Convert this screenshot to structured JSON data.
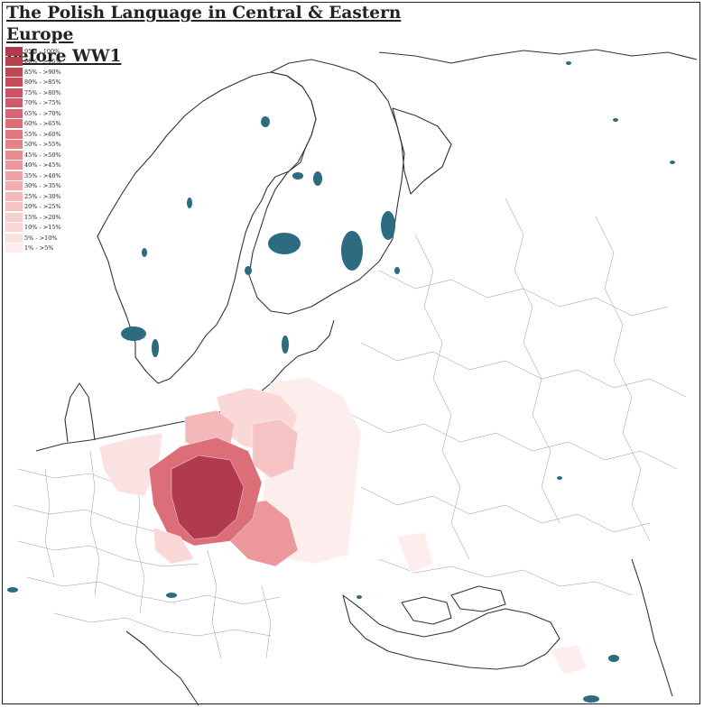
{
  "title": "The Polish Language in Central & Eastern Europe before WW1",
  "title_lines": [
    "The Polish Language in Central & Eastern Europe",
    "before WW1"
  ],
  "legend": [
    {
      "label": "95% - 100%",
      "color": "#b23a4e"
    },
    {
      "label": "90% - >95%",
      "color": "#b8404f"
    },
    {
      "label": "85% - >90%",
      "color": "#bf4656"
    },
    {
      "label": "80% - >85%",
      "color": "#c54c5c"
    },
    {
      "label": "75% - >80%",
      "color": "#cb5362"
    },
    {
      "label": "70% - >75%",
      "color": "#d15b69"
    },
    {
      "label": "65% - >70%",
      "color": "#d76470"
    },
    {
      "label": "60% - >65%",
      "color": "#dc6e78"
    },
    {
      "label": "55% - >60%",
      "color": "#e07880"
    },
    {
      "label": "50% - >55%",
      "color": "#e48288"
    },
    {
      "label": "45% - >50%",
      "color": "#e88c91"
    },
    {
      "label": "40% - >45%",
      "color": "#ec979b"
    },
    {
      "label": "35% - >40%",
      "color": "#efa2a5"
    },
    {
      "label": "30% - >35%",
      "color": "#f2adaf"
    },
    {
      "label": "25% - >30%",
      "color": "#f4b8ba"
    },
    {
      "label": "20% - >25%",
      "color": "#f6c3c4"
    },
    {
      "label": "15% - >20%",
      "color": "#f8cdce"
    },
    {
      "label": "10% - >15%",
      "color": "#fad8d8"
    },
    {
      "label": "5% - >10%",
      "color": "#fbe2e2"
    },
    {
      "label": "1% - >5%",
      "color": "#fdeded"
    }
  ],
  "colors": {
    "water": "#2c6b80",
    "border": "#8a8a8a",
    "coast": "#333333",
    "frame": "#222222"
  }
}
